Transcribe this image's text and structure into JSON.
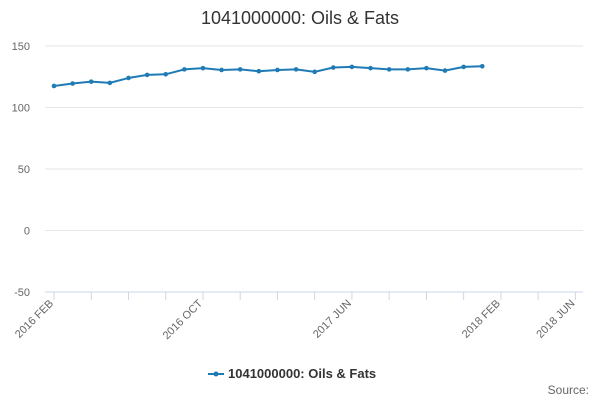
{
  "chart_data": {
    "type": "line",
    "title": "1041000000: Oils & Fats",
    "xlabel": "",
    "ylabel": "",
    "ylim": [
      -50,
      150
    ],
    "yticks": [
      -50,
      0,
      50,
      100,
      150
    ],
    "xtick_labels": [
      "2016 FEB",
      "2016 OCT",
      "2017 JUN",
      "2018 FEB",
      "2018 JUN"
    ],
    "xtick_months": [
      "2016-02",
      "2016-10",
      "2017-06",
      "2018-02",
      "2018-06"
    ],
    "x": [
      "2016-02",
      "2016-03",
      "2016-04",
      "2016-05",
      "2016-06",
      "2016-07",
      "2016-08",
      "2016-09",
      "2016-10",
      "2016-11",
      "2016-12",
      "2017-01",
      "2017-02",
      "2017-03",
      "2017-04",
      "2017-05",
      "2017-06",
      "2017-07",
      "2017-08",
      "2017-09",
      "2017-10",
      "2017-11",
      "2017-12",
      "2018-01"
    ],
    "series": [
      {
        "name": "1041000000: Oils & Fats",
        "color": "#1f7bb6",
        "values": [
          117.5,
          119.5,
          121,
          120,
          124,
          126.5,
          127,
          131,
          132,
          130.5,
          131,
          129.5,
          130.5,
          131,
          129,
          132.5,
          133,
          132,
          131,
          131,
          132,
          130,
          133,
          133.5
        ]
      }
    ],
    "grid": true,
    "legend": "bottom-center",
    "source_label": "Source:"
  }
}
